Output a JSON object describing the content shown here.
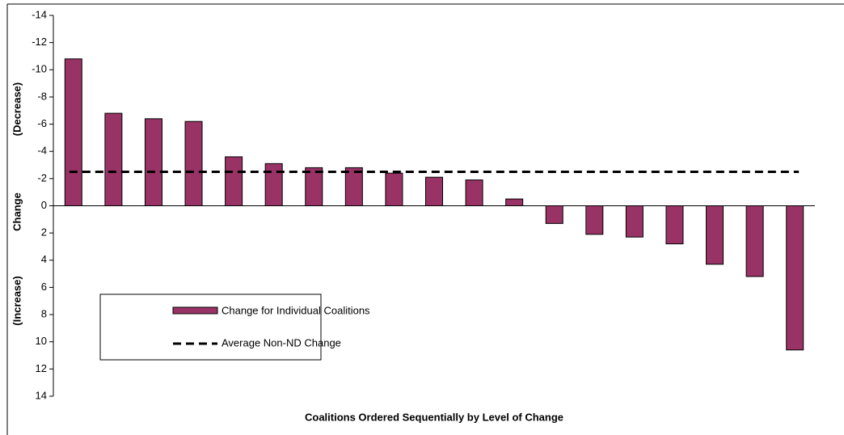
{
  "chart_data": {
    "type": "bar",
    "x_label": "Coalitions Ordered Sequentially by Level of Change",
    "y_label_parts": [
      "(Increase)",
      "Change",
      "(Decrease)"
    ],
    "categories": [
      null,
      null,
      null,
      null,
      null,
      null,
      null,
      null,
      null,
      null,
      null,
      null,
      null,
      null,
      null,
      null,
      null,
      null,
      null
    ],
    "series": [
      {
        "name": "Change for Individual Coalitions",
        "color": "#993366",
        "values": [
          -10.8,
          -6.8,
          -6.4,
          -6.2,
          -3.6,
          -3.1,
          -2.8,
          -2.8,
          -2.4,
          -2.1,
          -1.9,
          -0.5,
          1.3,
          2.1,
          2.3,
          2.8,
          4.3,
          5.2,
          10.6
        ]
      }
    ],
    "reference_line": {
      "name": "Average Non-ND Change",
      "value": -2.5,
      "color": "#000000",
      "style": "dashed"
    },
    "ylim": [
      -14,
      14
    ],
    "y_inverted": true,
    "yticks": [
      -14,
      -12,
      -10,
      -8,
      -6,
      -4,
      -2,
      0,
      2,
      4,
      6,
      8,
      10,
      12,
      14
    ],
    "grid": false
  }
}
